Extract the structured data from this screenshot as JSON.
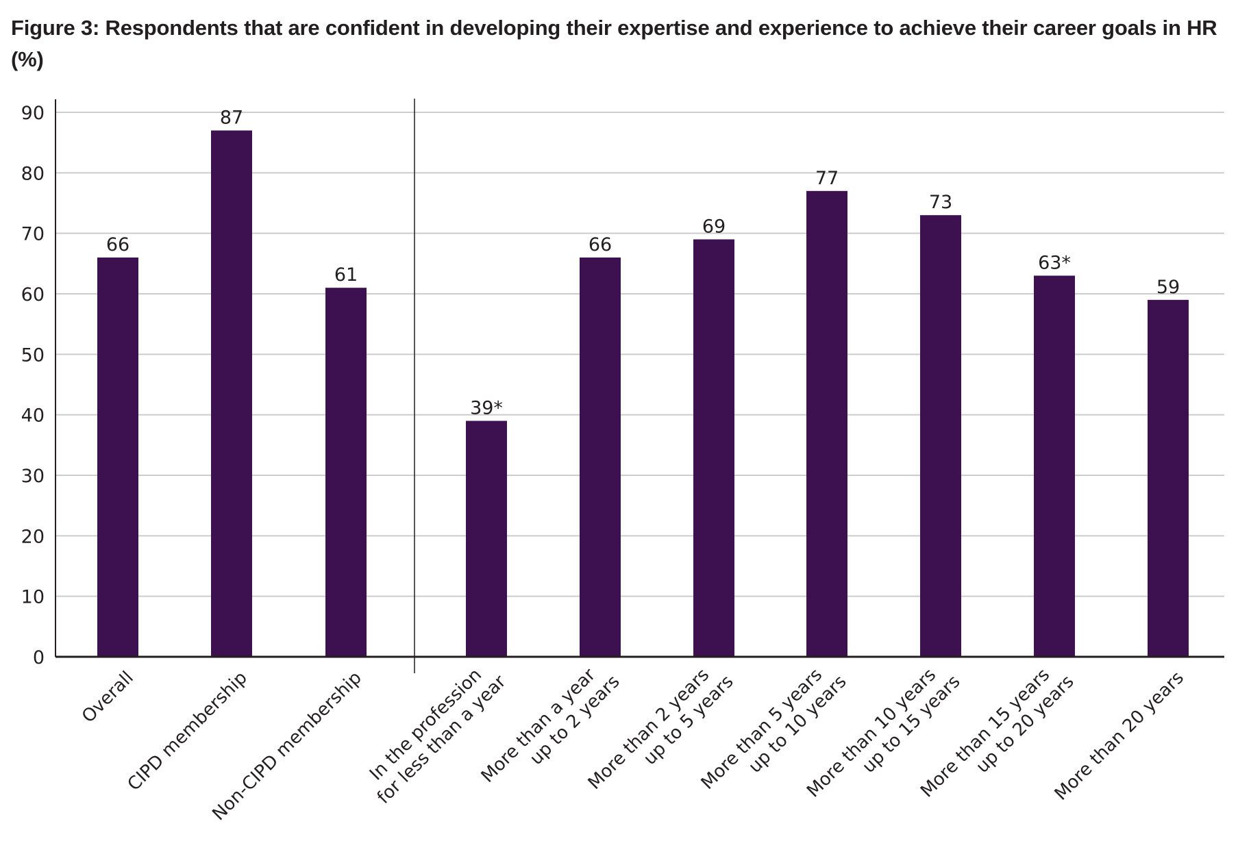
{
  "chart_data": {
    "type": "bar",
    "title": "Figure 3: Respondents that are confident in developing their expertise and experience to achieve their career goals in HR (%)",
    "categories": [
      [
        "Overall"
      ],
      [
        "CIPD membership"
      ],
      [
        "Non-CIPD membership"
      ],
      [
        "In the profession",
        "for less than a year"
      ],
      [
        "More than a year",
        "up to 2 years"
      ],
      [
        "More than 2 years",
        "up to 5 years"
      ],
      [
        "More than 5 years",
        "up to 10 years"
      ],
      [
        "More than 10 years",
        "up to 15 years"
      ],
      [
        "More than 15 years",
        "up to 20 years"
      ],
      [
        "More than 20 years"
      ]
    ],
    "values": [
      66,
      87,
      61,
      39,
      66,
      69,
      77,
      73,
      63,
      59
    ],
    "data_labels": [
      "66",
      "87",
      "61",
      "39*",
      "66",
      "69",
      "77",
      "73",
      "63*",
      "59"
    ],
    "yticks": [
      "0",
      "10",
      "20",
      "30",
      "40",
      "50",
      "60",
      "70",
      "80",
      "90"
    ],
    "ylim": [
      0,
      90
    ],
    "grid": true,
    "group_divider_after_index": 2,
    "colors": {
      "bar": "#3d1150",
      "grid": "#cccccc",
      "axis": "#231f20"
    }
  }
}
